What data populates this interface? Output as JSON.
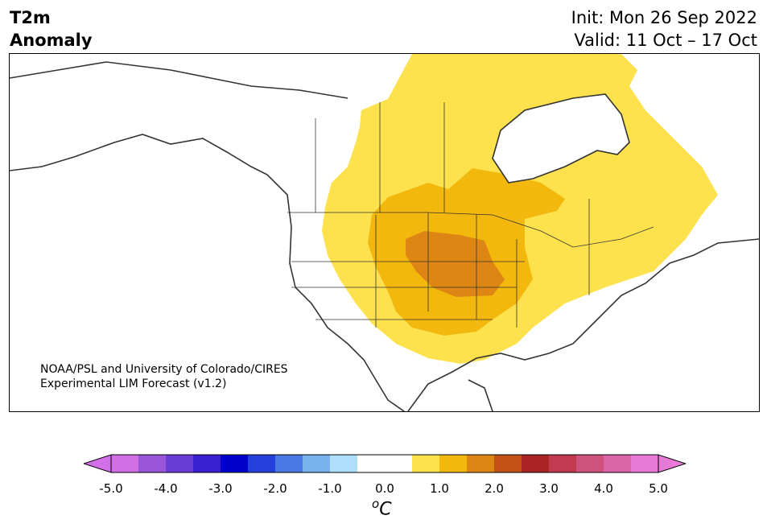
{
  "header": {
    "title_line1": "T2m",
    "title_line2": "Anomaly",
    "init": "Init: Mon 26 Sep 2022",
    "valid": "Valid: 11 Oct – 17 Oct"
  },
  "credit": {
    "line1": "NOAA/PSL and University of Colorado/CIRES",
    "line2": "Experimental LIM Forecast (v1.2)"
  },
  "colorbar": {
    "unit_symbol": "o",
    "unit_letter": "C",
    "ticks": [
      "-5.0",
      "-4.0",
      "-3.0",
      "-2.0",
      "-1.0",
      "0.0",
      "1.0",
      "2.0",
      "3.0",
      "4.0",
      "5.0"
    ],
    "colors": [
      "#d36fe6",
      "#9a55db",
      "#6a3cd8",
      "#3a1fd0",
      "#0000cc",
      "#2440dc",
      "#4c78e4",
      "#7ab2f0",
      "#aee0fb",
      "#ffffff",
      "#ffffff",
      "#fde24d",
      "#f2b80e",
      "#dd8613",
      "#c45218",
      "#aa2424",
      "#c23a50",
      "#cf527c",
      "#d964a8",
      "#e77ad6"
    ],
    "under_color": "#d36fe6",
    "over_color": "#e77ad6"
  },
  "map_colors": {
    "level_0_5_1_0": "#fde24d",
    "level_1_0_1_5": "#f2b80e",
    "level_1_5_2_0": "#dd8613",
    "land_outline": "#333333"
  }
}
